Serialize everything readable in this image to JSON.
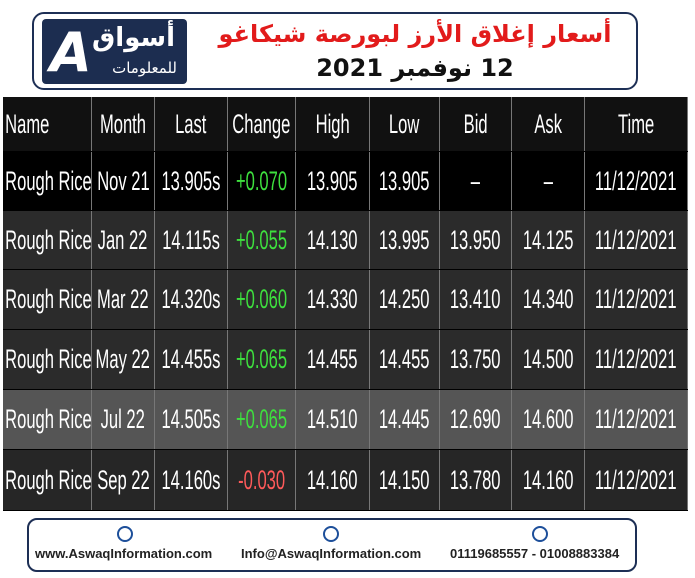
{
  "header": {
    "title": "أسعار إغلاق الأرز لبورصة شيكاغو",
    "date": "12 نوفمبر 2021"
  },
  "logo": {
    "name": "أسواق",
    "tagline": "للمعلومات"
  },
  "table": {
    "columns": [
      "Name",
      "Month",
      "Last",
      "Change",
      "High",
      "Low",
      "Bid",
      "Ask",
      "Time"
    ],
    "rows": [
      [
        "Rough Rice",
        "Nov 21",
        "13.905s",
        "+0.070",
        "13.905",
        "13.905",
        "–",
        "–",
        "11/12/2021"
      ],
      [
        "Rough Rice",
        "Jan 22",
        "14.115s",
        "+0.055",
        "14.130",
        "13.995",
        "13.950",
        "14.125",
        "11/12/2021"
      ],
      [
        "Rough Rice",
        "Mar 22",
        "14.320s",
        "+0.060",
        "14.330",
        "14.250",
        "13.410",
        "14.340",
        "11/12/2021"
      ],
      [
        "Rough Rice",
        "May 22",
        "14.455s",
        "+0.065",
        "14.455",
        "14.455",
        "13.750",
        "14.500",
        "11/12/2021"
      ],
      [
        "Rough Rice",
        "Jul 22",
        "14.505s",
        "+0.065",
        "14.510",
        "14.445",
        "12.690",
        "14.600",
        "11/12/2021"
      ],
      [
        "Rough Rice",
        "Sep 22",
        "14.160s",
        "-0.030",
        "14.160",
        "14.150",
        "13.780",
        "14.160",
        "11/12/2021"
      ]
    ]
  },
  "footer": {
    "website": "www.AswaqInformation.com",
    "email": "Info@AswaqInformation.com",
    "phone": "01119685557 - 01008883384"
  }
}
